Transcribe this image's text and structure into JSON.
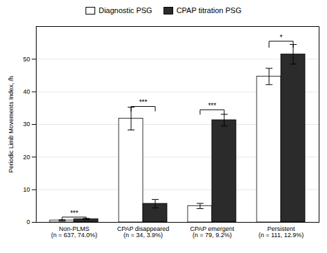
{
  "chart_data": {
    "type": "bar",
    "categories": [
      "Non-PLMS\n(n = 637, 74.0%)",
      "CPAP disappeared\n(n = 34, 3.9%)",
      "CPAP emergent\n(n = 79, 9.2%)",
      "Persistent\n(n = 111, 12.9%)"
    ],
    "series": [
      {
        "name": "Diagnostic PSG",
        "color": "#ffffff",
        "values": [
          0.6,
          31.8,
          5.0,
          44.7
        ],
        "errors": [
          0.2,
          3.5,
          0.8,
          2.5
        ]
      },
      {
        "name": "CPAP titration PSG",
        "color": "#2b2b2b",
        "values": [
          1.0,
          5.7,
          31.3,
          51.5
        ],
        "errors": [
          0.2,
          1.3,
          1.8,
          3.0
        ]
      }
    ],
    "annotations": [
      {
        "text": "***",
        "y": 1.6,
        "drop": 0.8
      },
      {
        "text": "***",
        "y": 35.5,
        "drop": 1.5
      },
      {
        "text": "***",
        "y": 34.5,
        "drop": 1.5
      },
      {
        "text": "*",
        "y": 55.5,
        "drop": 2.0
      }
    ],
    "ylabel": "Periodic Limb Movements Index, /h",
    "ylim": [
      0,
      60
    ],
    "yticks": [
      0,
      10,
      20,
      30,
      40,
      50
    ],
    "grid": true,
    "legend": "top"
  }
}
